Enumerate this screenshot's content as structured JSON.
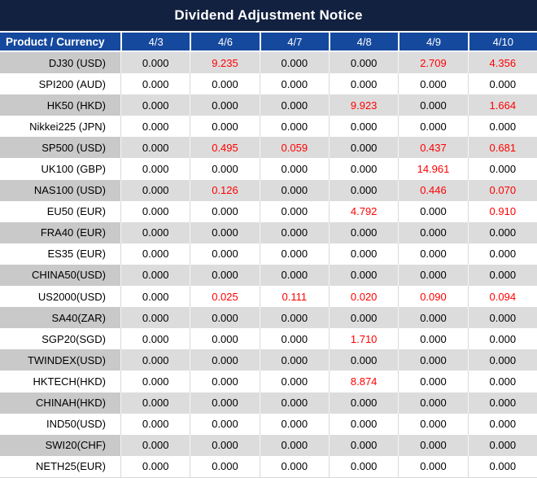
{
  "title": "Dividend Adjustment Notice",
  "colors": {
    "title_bg": "#132140",
    "header_bg": "#15499E",
    "header_text": "#FFFFFF",
    "alt_row_product_bg": "#C9C9C9",
    "alt_row_value_bg": "#DCDCDC",
    "plain_row_bg": "#FFFFFF",
    "zero_value_text": "#000000",
    "nonzero_value_text": "#FF0000"
  },
  "chart_data": {
    "type": "table",
    "title": "Dividend Adjustment Notice",
    "columns": [
      "Product / Currency",
      "4/3",
      "4/6",
      "4/7",
      "4/8",
      "4/9",
      "4/10"
    ],
    "highlight_rule": "non-zero values rendered in red",
    "rows": [
      {
        "product": "DJ30 (USD)",
        "values": [
          "0.000",
          "9.235",
          "0.000",
          "0.000",
          "2.709",
          "4.356"
        ]
      },
      {
        "product": "SPI200 (AUD)",
        "values": [
          "0.000",
          "0.000",
          "0.000",
          "0.000",
          "0.000",
          "0.000"
        ]
      },
      {
        "product": "HK50 (HKD)",
        "values": [
          "0.000",
          "0.000",
          "0.000",
          "9.923",
          "0.000",
          "1.664"
        ]
      },
      {
        "product": "Nikkei225 (JPN)",
        "values": [
          "0.000",
          "0.000",
          "0.000",
          "0.000",
          "0.000",
          "0.000"
        ]
      },
      {
        "product": "SP500 (USD)",
        "values": [
          "0.000",
          "0.495",
          "0.059",
          "0.000",
          "0.437",
          "0.681"
        ]
      },
      {
        "product": "UK100 (GBP)",
        "values": [
          "0.000",
          "0.000",
          "0.000",
          "0.000",
          "14.961",
          "0.000"
        ]
      },
      {
        "product": "NAS100 (USD)",
        "values": [
          "0.000",
          "0.126",
          "0.000",
          "0.000",
          "0.446",
          "0.070"
        ]
      },
      {
        "product": "EU50 (EUR)",
        "values": [
          "0.000",
          "0.000",
          "0.000",
          "4.792",
          "0.000",
          "0.910"
        ]
      },
      {
        "product": "FRA40 (EUR)",
        "values": [
          "0.000",
          "0.000",
          "0.000",
          "0.000",
          "0.000",
          "0.000"
        ]
      },
      {
        "product": "ES35 (EUR)",
        "values": [
          "0.000",
          "0.000",
          "0.000",
          "0.000",
          "0.000",
          "0.000"
        ]
      },
      {
        "product": "CHINA50(USD)",
        "values": [
          "0.000",
          "0.000",
          "0.000",
          "0.000",
          "0.000",
          "0.000"
        ]
      },
      {
        "product": "US2000(USD)",
        "values": [
          "0.000",
          "0.025",
          "0.111",
          "0.020",
          "0.090",
          "0.094"
        ]
      },
      {
        "product": "SA40(ZAR)",
        "values": [
          "0.000",
          "0.000",
          "0.000",
          "0.000",
          "0.000",
          "0.000"
        ]
      },
      {
        "product": "SGP20(SGD)",
        "values": [
          "0.000",
          "0.000",
          "0.000",
          "1.710",
          "0.000",
          "0.000"
        ]
      },
      {
        "product": "TWINDEX(USD)",
        "values": [
          "0.000",
          "0.000",
          "0.000",
          "0.000",
          "0.000",
          "0.000"
        ]
      },
      {
        "product": "HKTECH(HKD)",
        "values": [
          "0.000",
          "0.000",
          "0.000",
          "8.874",
          "0.000",
          "0.000"
        ]
      },
      {
        "product": "CHINAH(HKD)",
        "values": [
          "0.000",
          "0.000",
          "0.000",
          "0.000",
          "0.000",
          "0.000"
        ]
      },
      {
        "product": "IND50(USD)",
        "values": [
          "0.000",
          "0.000",
          "0.000",
          "0.000",
          "0.000",
          "0.000"
        ]
      },
      {
        "product": "SWI20(CHF)",
        "values": [
          "0.000",
          "0.000",
          "0.000",
          "0.000",
          "0.000",
          "0.000"
        ]
      },
      {
        "product": "NETH25(EUR)",
        "values": [
          "0.000",
          "0.000",
          "0.000",
          "0.000",
          "0.000",
          "0.000"
        ]
      }
    ]
  }
}
